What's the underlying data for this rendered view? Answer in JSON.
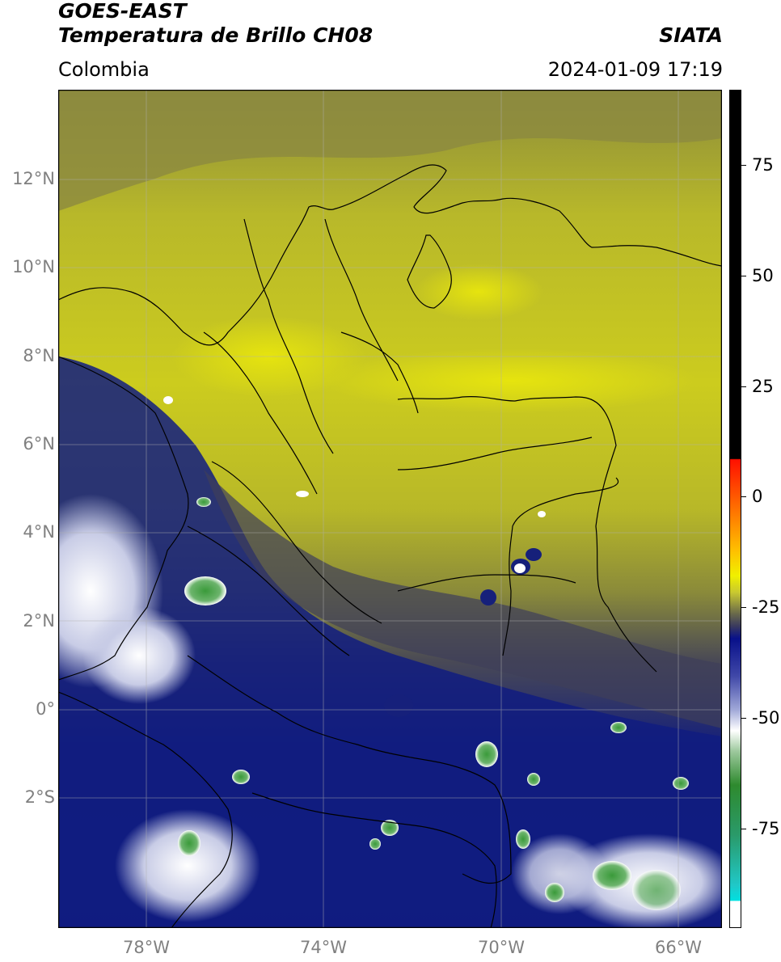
{
  "header": {
    "title_line1": "GOES-EAST",
    "title_line2": "Temperatura de Brillo CH08",
    "region": "Colombia",
    "organization": "SIATA",
    "timestamp": "2024-01-09 17:19"
  },
  "map": {
    "lat_labels": [
      "12°N",
      "10°N",
      "8°N",
      "6°N",
      "4°N",
      "2°N",
      "0°",
      "2°S"
    ],
    "lon_labels": [
      "78°W",
      "74°W",
      "70°W",
      "66°W"
    ],
    "extent": {
      "lon_min": -79.9,
      "lon_max": -64.9,
      "lat_min": -5.0,
      "lat_max": 14.0
    }
  },
  "colorbar": {
    "tick_labels": [
      "75",
      "50",
      "25",
      "0",
      "-25",
      "-50",
      "-75"
    ],
    "range": [
      -95,
      90
    ],
    "colors": {
      "black_top": "#000000",
      "red": "#ff2000",
      "orange": "#ff9000",
      "yellow": "#e8e000",
      "olive": "#7a7a2e",
      "navy": "#0a1a80",
      "white": "#ffffff",
      "green": "#2e8b2e",
      "cyan": "#00d8d8"
    }
  }
}
